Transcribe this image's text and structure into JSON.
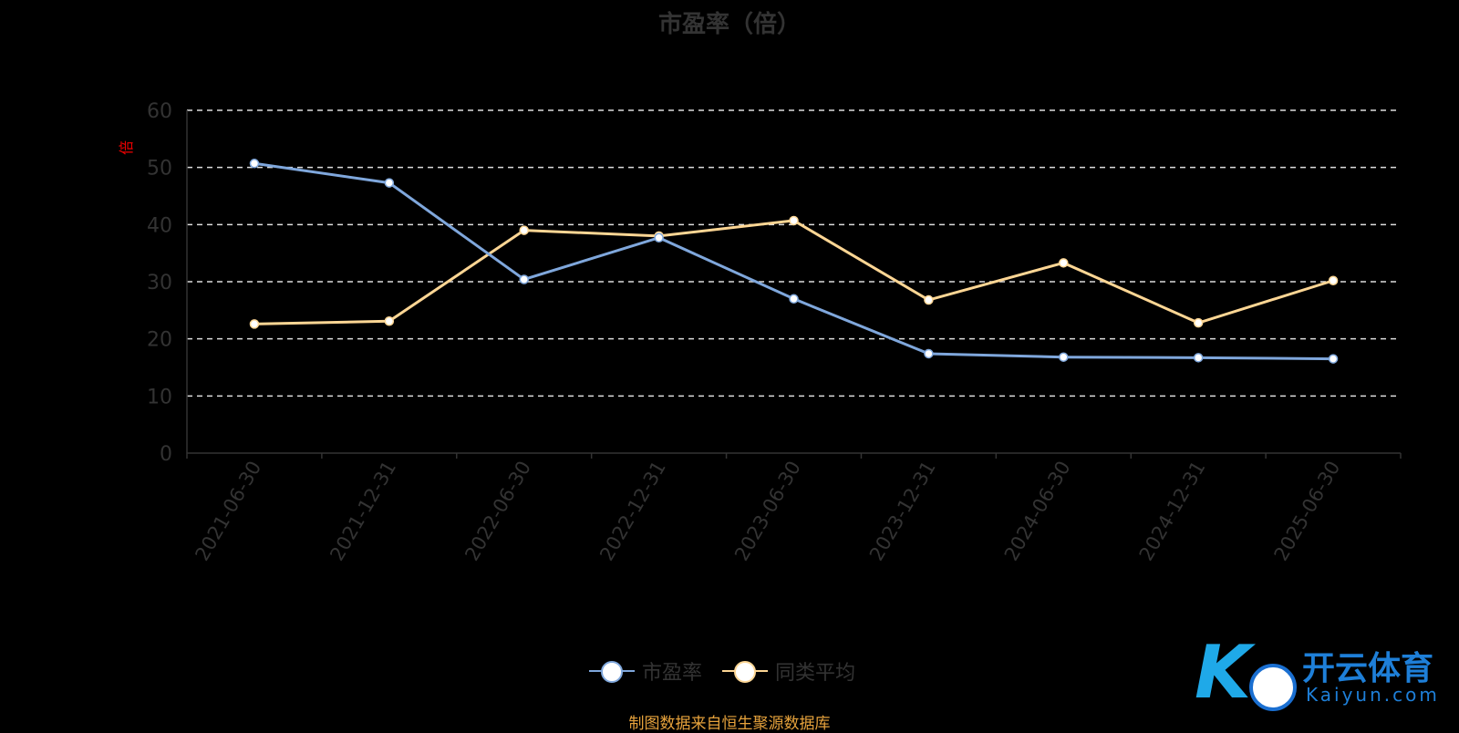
{
  "chart_data": {
    "type": "line",
    "title": "市盈率（倍）",
    "ylabel": "倍",
    "xlabel": "",
    "ylim": [
      0,
      60
    ],
    "yticks": [
      0,
      10,
      20,
      30,
      40,
      50,
      60
    ],
    "grid": true,
    "legend_position": "bottom-center",
    "categories": [
      "2021-06-30",
      "2021-12-31",
      "2022-06-30",
      "2022-12-31",
      "2023-06-30",
      "2023-12-31",
      "2024-06-30",
      "2024-12-31",
      "2025-06-30"
    ],
    "series": [
      {
        "name": "市盈率",
        "color": "#7fa7dc",
        "values": [
          50.7,
          47.3,
          30.4,
          37.7,
          27.0,
          17.4,
          16.8,
          16.7,
          16.5
        ]
      },
      {
        "name": "同类平均",
        "color": "#fdd694",
        "values": [
          22.6,
          23.1,
          39.0,
          38.0,
          40.7,
          26.8,
          33.3,
          22.8,
          30.2
        ]
      }
    ]
  },
  "source": "制图数据来自恒生聚源数据库",
  "watermark": {
    "cn": "开云体育",
    "en": "Kaiyun.com"
  }
}
